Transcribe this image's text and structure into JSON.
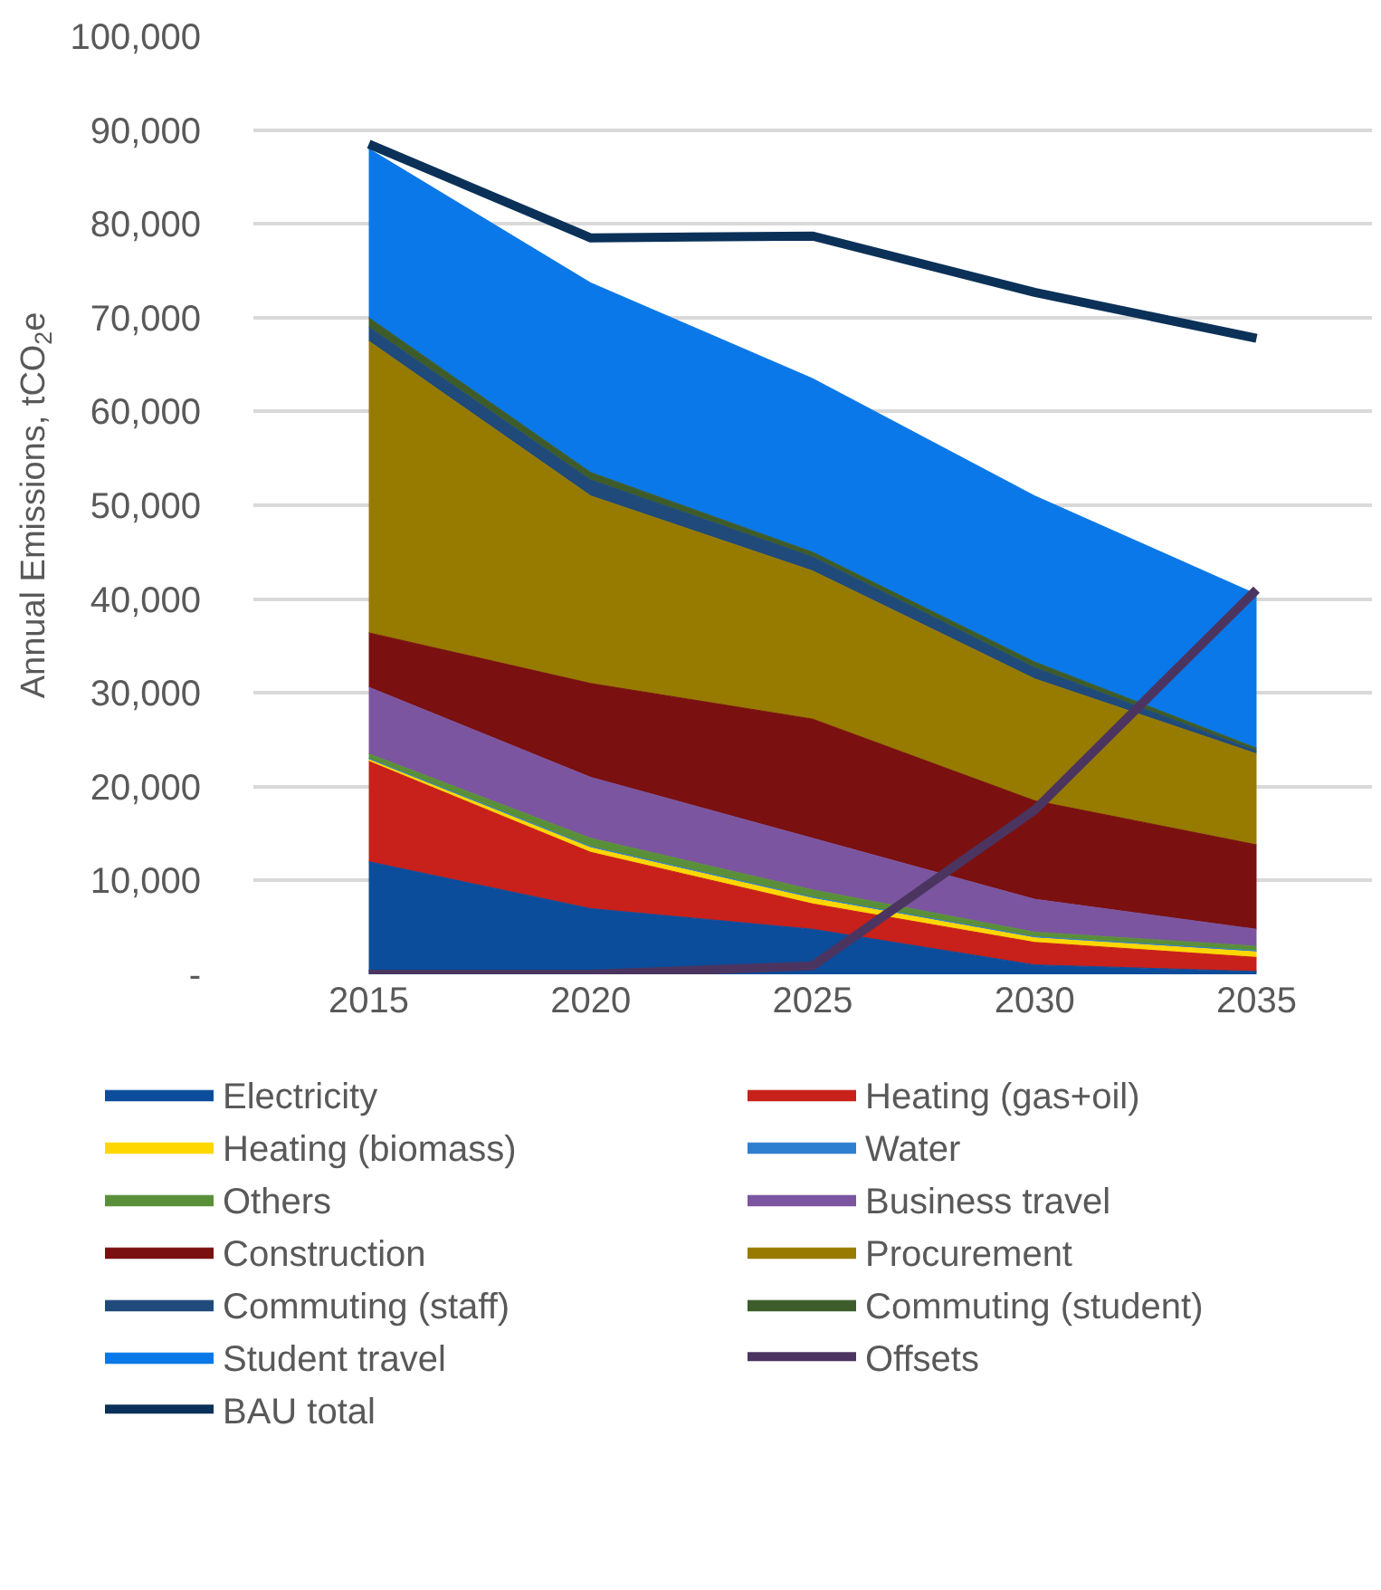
{
  "chart_data": {
    "type": "area",
    "stacked": true,
    "ylabel": "Annual Emissions, tCO$_{2}$e",
    "x": [
      2015,
      2020,
      2025,
      2030,
      2035
    ],
    "xlim": [
      2012.4,
      2037.6
    ],
    "xticks": [
      2015,
      2020,
      2025,
      2030,
      2035
    ],
    "ylim": [
      0,
      100000
    ],
    "yticks": [
      {
        "value": 0,
        "label": "-"
      },
      {
        "value": 10000,
        "label": "10,000"
      },
      {
        "value": 20000,
        "label": "20,000"
      },
      {
        "value": 30000,
        "label": "30,000"
      },
      {
        "value": 40000,
        "label": "40,000"
      },
      {
        "value": 50000,
        "label": "50,000"
      },
      {
        "value": 60000,
        "label": "60,000"
      },
      {
        "value": 70000,
        "label": "70,000"
      },
      {
        "value": 80000,
        "label": "80,000"
      },
      {
        "value": 90000,
        "label": "90,000"
      },
      {
        "value": 100000,
        "label": "100,000"
      }
    ],
    "grid": "y",
    "legend": "bottom",
    "series": [
      {
        "name": "Electricity",
        "color": "#0b4c9b",
        "values": [
          12000,
          7000,
          4800,
          1000,
          300
        ]
      },
      {
        "name": "Heating (gas+oil)",
        "color": "#c8201a",
        "values": [
          10700,
          6000,
          2700,
          2400,
          1500
        ]
      },
      {
        "name": "Heating (biomass)",
        "color": "#ffd700",
        "values": [
          200,
          500,
          600,
          500,
          600
        ]
      },
      {
        "name": "Water",
        "color": "#2f7fd0",
        "values": [
          100,
          100,
          100,
          100,
          100
        ]
      },
      {
        "name": "Others",
        "color": "#5a8f3a",
        "values": [
          500,
          900,
          800,
          500,
          500
        ]
      },
      {
        "name": "Business travel",
        "color": "#7b55a0",
        "values": [
          7100,
          6500,
          5500,
          3500,
          1800
        ]
      },
      {
        "name": "Construction",
        "color": "#7a1010",
        "values": [
          5800,
          10000,
          12700,
          10500,
          9000
        ]
      },
      {
        "name": "Procurement",
        "color": "#977a00",
        "values": [
          31100,
          20000,
          15800,
          13000,
          9700
        ]
      },
      {
        "name": "Commuting (staff)",
        "color": "#1f4a7a",
        "values": [
          1500,
          1700,
          1500,
          1200,
          300
        ]
      },
      {
        "name": "Commuting (student)",
        "color": "#3e5c2a",
        "values": [
          1000,
          800,
          500,
          600,
          300
        ]
      },
      {
        "name": "Student travel",
        "color": "#0a78e8",
        "values": [
          18000,
          20200,
          18500,
          17700,
          16400
        ]
      },
      {
        "name": "Offsets",
        "type": "line",
        "color": "#4b3560",
        "values": [
          0,
          0,
          900,
          17500,
          41000
        ]
      },
      {
        "name": "BAU total",
        "type": "line",
        "color": "#0b3158",
        "values": [
          88500,
          78500,
          78700,
          72700,
          67800
        ]
      }
    ]
  }
}
